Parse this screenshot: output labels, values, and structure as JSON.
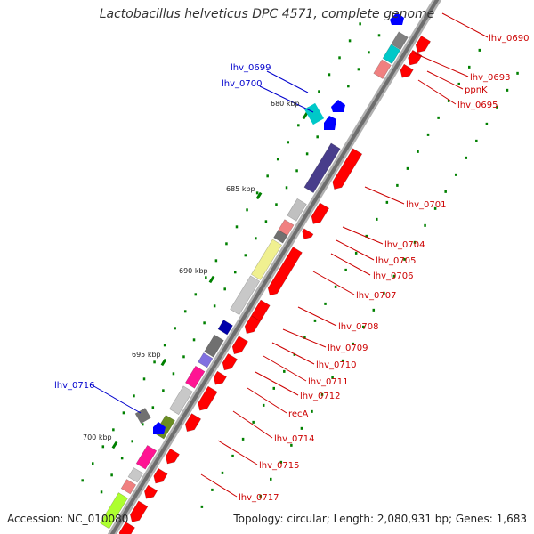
{
  "title": "Lactobacillus helveticus DPC 4571, complete genome",
  "footer": {
    "accession": "Accession: NC_010080",
    "topology": "Topology: circular; Length: 2,080,931 bp; Genes: 1,683"
  },
  "colors": {
    "backbone": "#808080",
    "forward_gene": "#ff0000",
    "reverse_gene": "#0000ff",
    "label_right": "#cc0000",
    "label_left": "#0000cc",
    "tick": "#008000"
  },
  "kbp_ticks": [
    "680 kbp",
    "685 kbp",
    "690 kbp",
    "695 kbp",
    "700 kbp"
  ],
  "labels_right": [
    "lhv_0690",
    "lhv_0693",
    "ppnK",
    "lhv_0695",
    "lhv_0701",
    "lhv_0704",
    "lhv_0705",
    "lhv_0706",
    "lhv_0707",
    "lhv_0708",
    "lhv_0709",
    "lhv_0710",
    "lhv_0711",
    "lhv_0712",
    "recA",
    "lhv_0714",
    "lhv_0715",
    "lhv_0717"
  ],
  "labels_left": [
    "lhv_0699",
    "lhv_0700",
    "lhv_0716"
  ]
}
